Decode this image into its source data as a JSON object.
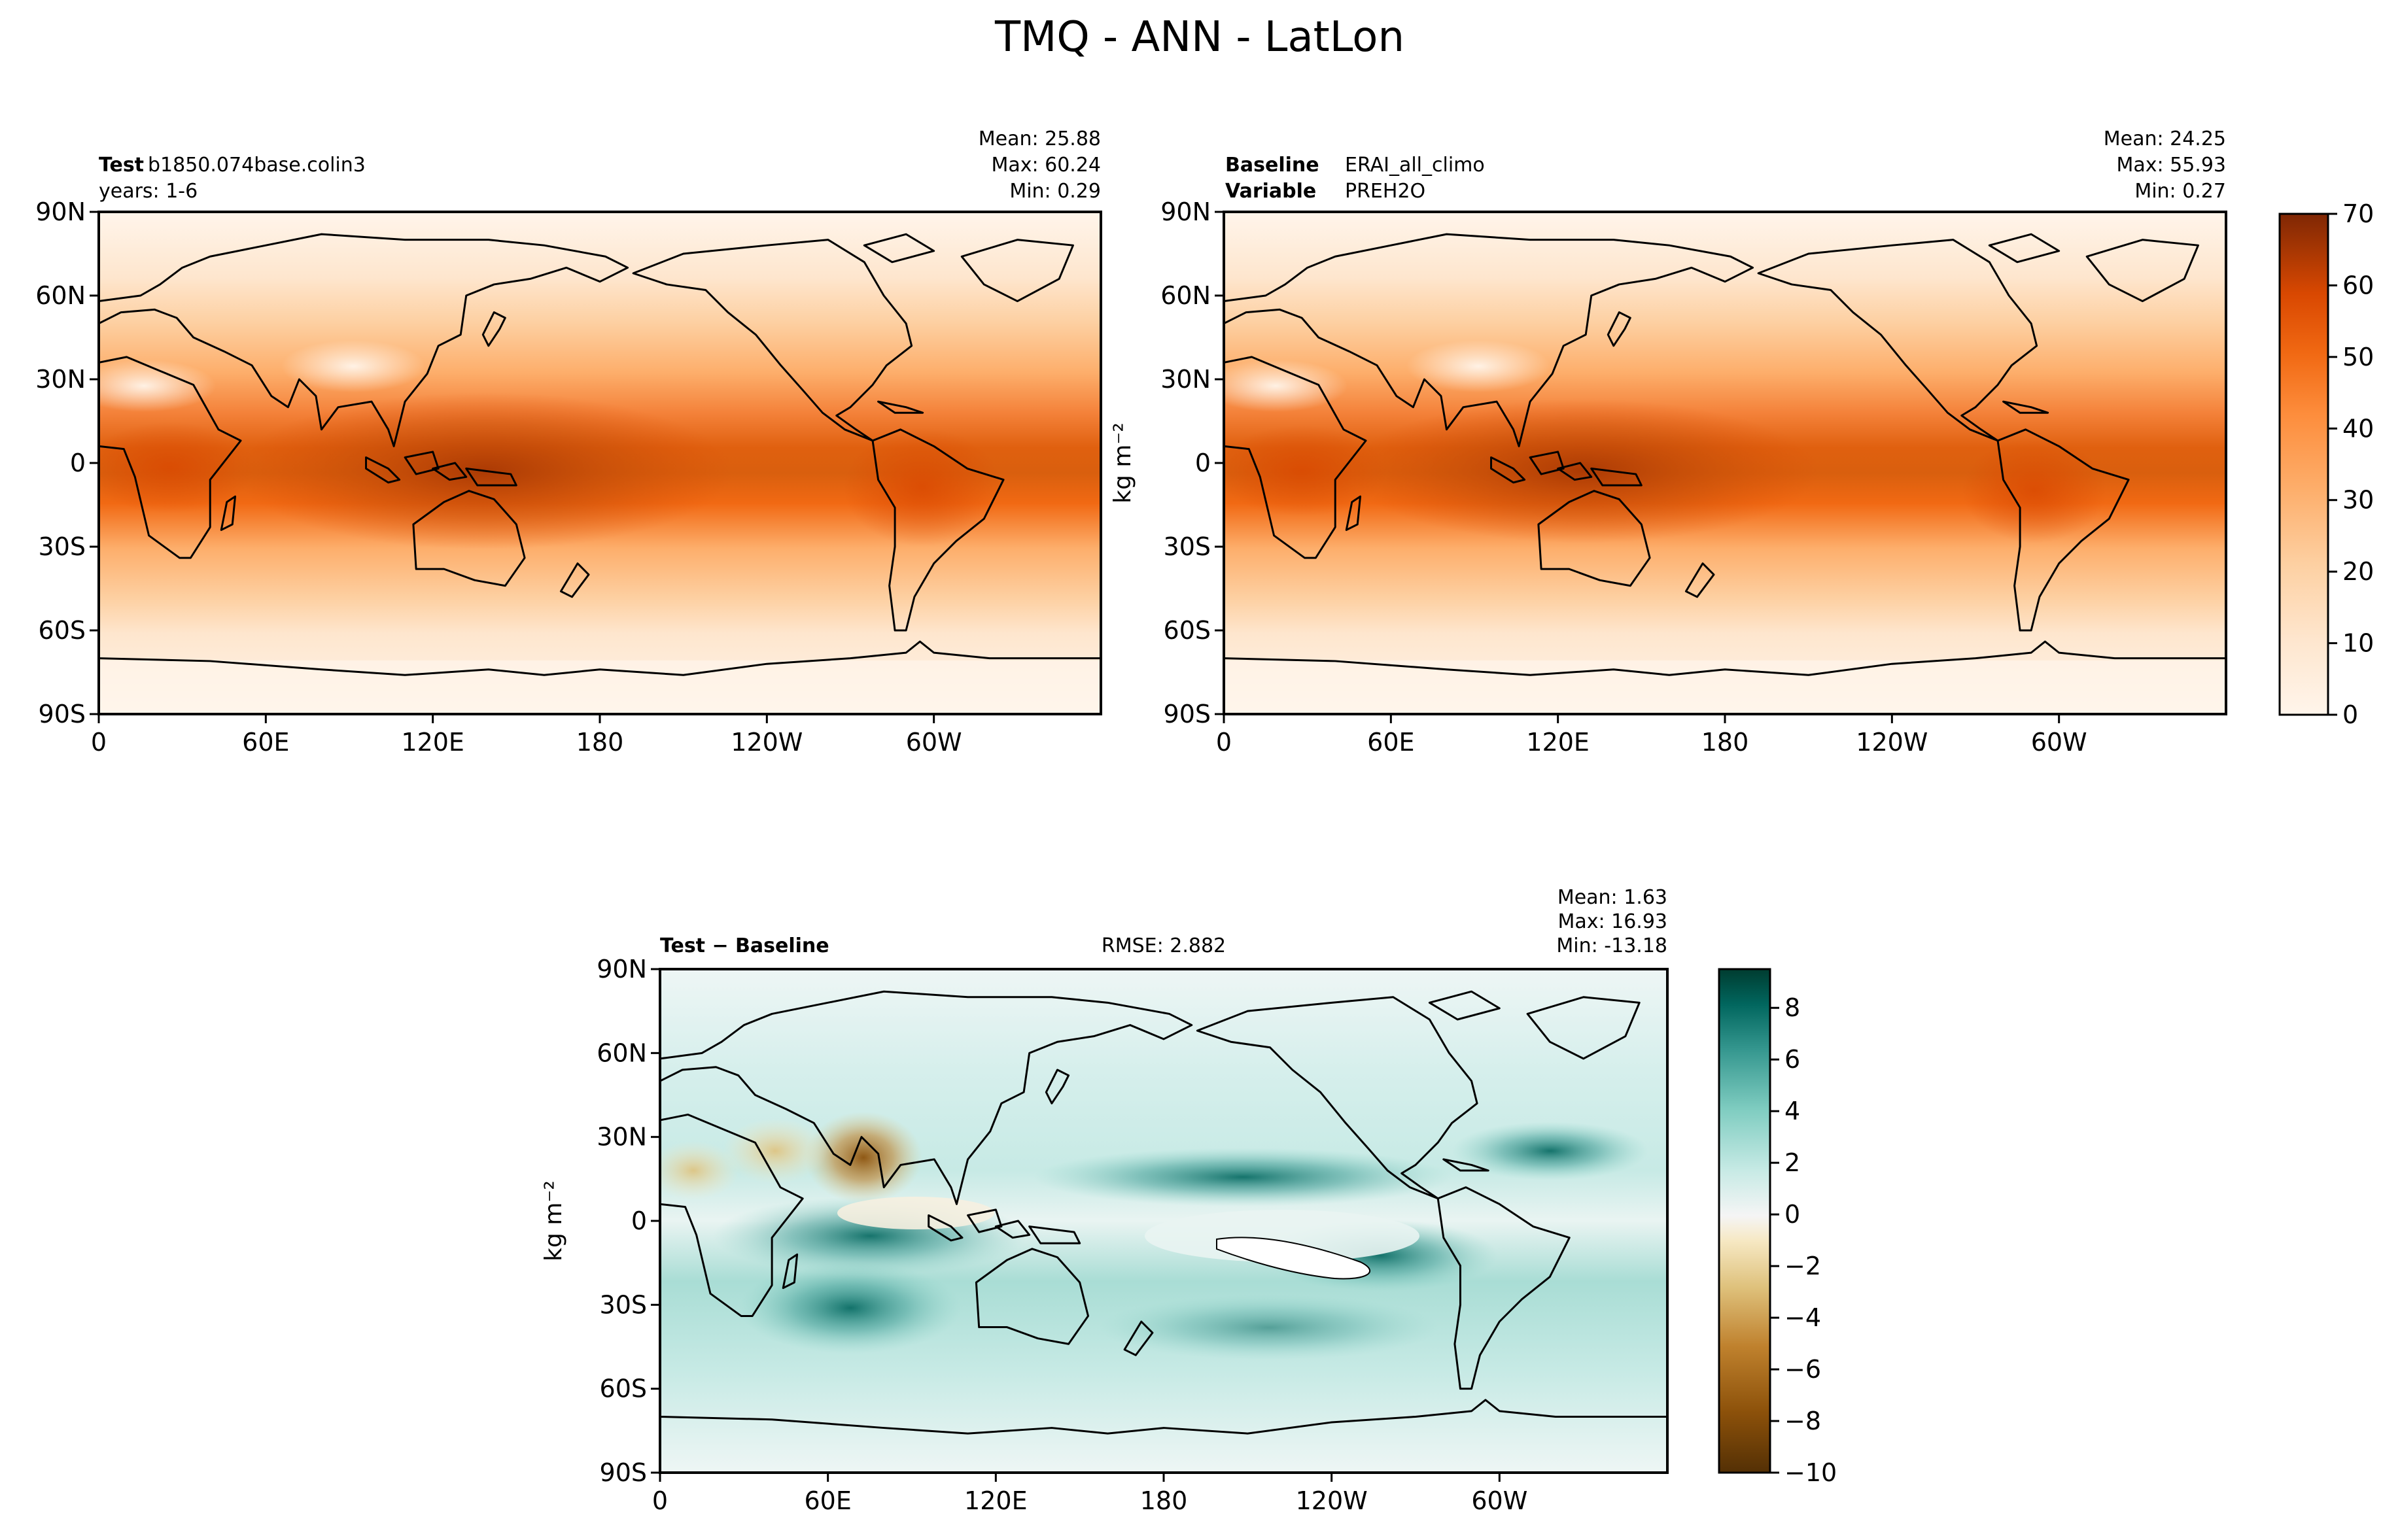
{
  "figure": {
    "title": "TMQ - ANN - LatLon"
  },
  "chart_data": [
    {
      "type": "heatmap",
      "panel": "test",
      "title_bold": "Test",
      "title_line1": "b1850.074base.colin3",
      "title_line2": "years: 1-6",
      "stats": {
        "mean": "Mean: 25.88",
        "max": "Max: 60.24",
        "min": "Min:  0.29"
      },
      "x_ticks": [
        "0",
        "60E",
        "120E",
        "180",
        "120W",
        "60W"
      ],
      "y_ticks": [
        "90N",
        "60N",
        "30N",
        "0",
        "30S",
        "60S",
        "90S"
      ],
      "xlim": [
        0,
        360
      ],
      "ylim": [
        -90,
        90
      ],
      "colormap": "Oranges",
      "colors": {
        "low": "#fff5eb",
        "high": "#7f2704"
      }
    },
    {
      "type": "heatmap",
      "panel": "baseline",
      "title_bold": "Baseline",
      "title_line1": "ERAI_all_climo",
      "title_bold2": "Variable",
      "title_line2": "PREH2O",
      "stats": {
        "mean": "Mean: 24.25",
        "max": "Max: 55.93",
        "min": "Min:  0.27"
      },
      "x_ticks": [
        "0",
        "60E",
        "120E",
        "180",
        "120W",
        "60W"
      ],
      "y_ticks": [
        "90N",
        "60N",
        "30N",
        "0",
        "30S",
        "60S",
        "90S"
      ],
      "ylabel": "kg m⁻²",
      "xlim": [
        0,
        360
      ],
      "ylim": [
        -90,
        90
      ],
      "colorbar_ticks": [
        "70",
        "60",
        "50",
        "40",
        "30",
        "20",
        "10",
        "0"
      ],
      "colorbar_range": [
        0,
        70
      ],
      "colormap": "Oranges",
      "colors": {
        "low": "#fff5eb",
        "high": "#7f2704"
      }
    },
    {
      "type": "heatmap",
      "panel": "difference",
      "title_bold": "Test − Baseline",
      "rmse": "RMSE: 2.882",
      "stats": {
        "mean": "Mean:  1.63",
        "max": "Max: 16.93",
        "min": "Min: -13.18"
      },
      "x_ticks": [
        "0",
        "60E",
        "120E",
        "180",
        "120W",
        "60W"
      ],
      "y_ticks": [
        "90N",
        "60N",
        "30N",
        "0",
        "30S",
        "60S",
        "90S"
      ],
      "ylabel": "kg m⁻²",
      "xlim": [
        0,
        360
      ],
      "ylim": [
        -90,
        90
      ],
      "colorbar_ticks": [
        "8",
        "6",
        "4",
        "2",
        "0",
        "−2",
        "−4",
        "−6",
        "−8",
        "−10"
      ],
      "colorbar_range": [
        -10,
        9.5
      ],
      "colormap": "BrBG",
      "colors": {
        "low": "#543005",
        "mid": "#f5f5f5",
        "high": "#003c30"
      }
    }
  ]
}
